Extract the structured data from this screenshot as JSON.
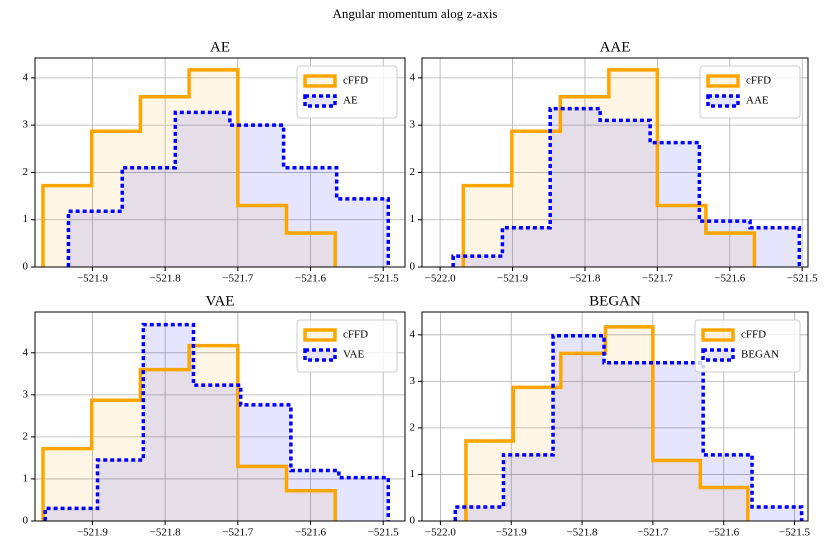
{
  "title": "Angular momentum alog z-axis",
  "chart_data": [
    {
      "type": "histogram",
      "title": "AE",
      "xlim": [
        -521.979,
        -521.47
      ],
      "ylim": [
        0,
        4.42
      ],
      "xticks": [
        {
          "value": -521.9,
          "label": "−521.9"
        },
        {
          "value": -521.8,
          "label": "−521.8"
        },
        {
          "value": -521.7,
          "label": "−521.7"
        },
        {
          "value": -521.6,
          "label": "−521.6"
        },
        {
          "value": -521.5,
          "label": "−521.5"
        }
      ],
      "yticks": [
        0,
        1,
        2,
        3,
        4
      ],
      "grid": true,
      "legend": "upper right",
      "series": [
        {
          "name": "cFFD",
          "color": "#ffa500",
          "linestyle": "solid",
          "bins": [
            -521.968,
            -521.901,
            -521.834,
            -521.767,
            -521.7,
            -521.633,
            -521.566
          ],
          "values": [
            1.72,
            2.87,
            3.6,
            4.17,
            1.3,
            0.72
          ]
        },
        {
          "name": "AE",
          "color": "#0000ff",
          "linestyle": "dotted",
          "bins": [
            -521.933,
            -521.859,
            -521.786,
            -521.711,
            -521.637,
            -521.564,
            -521.493
          ],
          "values": [
            1.18,
            2.1,
            3.27,
            3.0,
            2.1,
            1.44
          ]
        }
      ]
    },
    {
      "type": "histogram",
      "title": "AAE",
      "xlim": [
        -522.025,
        -521.492
      ],
      "ylim": [
        0,
        4.42
      ],
      "xticks": [
        {
          "value": -522.0,
          "label": "−522.0"
        },
        {
          "value": -521.9,
          "label": "−521.9"
        },
        {
          "value": -521.8,
          "label": "−521.8"
        },
        {
          "value": -521.7,
          "label": "−521.7"
        },
        {
          "value": -521.6,
          "label": "−521.6"
        },
        {
          "value": -521.5,
          "label": "−521.5"
        }
      ],
      "yticks": [
        0,
        1,
        2,
        3,
        4
      ],
      "grid": true,
      "legend": "upper right",
      "series": [
        {
          "name": "cFFD",
          "color": "#ffa500",
          "linestyle": "solid",
          "bins": [
            -521.968,
            -521.901,
            -521.834,
            -521.767,
            -521.7,
            -521.633,
            -521.566
          ],
          "values": [
            1.72,
            2.87,
            3.6,
            4.17,
            1.3,
            0.72
          ]
        },
        {
          "name": "AAE",
          "color": "#0000ff",
          "linestyle": "dotted",
          "bins": [
            -521.982,
            -521.914,
            -521.848,
            -521.779,
            -521.71,
            -521.642,
            -521.572,
            -521.504
          ],
          "values": [
            0.23,
            0.83,
            3.35,
            3.1,
            2.63,
            0.97,
            0.83
          ]
        }
      ]
    },
    {
      "type": "histogram",
      "title": "VAE",
      "xlim": [
        -521.979,
        -521.47
      ],
      "ylim": [
        0,
        4.97
      ],
      "xticks": [
        {
          "value": -521.9,
          "label": "−521.9"
        },
        {
          "value": -521.8,
          "label": "−521.8"
        },
        {
          "value": -521.7,
          "label": "−521.7"
        },
        {
          "value": -521.6,
          "label": "−521.6"
        },
        {
          "value": -521.5,
          "label": "−521.5"
        }
      ],
      "yticks": [
        0,
        1,
        2,
        3,
        4
      ],
      "grid": true,
      "legend": "upper right",
      "series": [
        {
          "name": "cFFD",
          "color": "#ffa500",
          "linestyle": "solid",
          "bins": [
            -521.968,
            -521.901,
            -521.834,
            -521.767,
            -521.7,
            -521.633,
            -521.566
          ],
          "values": [
            1.72,
            2.87,
            3.6,
            4.17,
            1.3,
            0.72
          ]
        },
        {
          "name": "VAE",
          "color": "#0000ff",
          "linestyle": "dotted",
          "bins": [
            -521.965,
            -521.893,
            -521.83,
            -521.761,
            -521.696,
            -521.627,
            -521.561,
            -521.493
          ],
          "values": [
            0.3,
            1.45,
            4.67,
            3.23,
            2.76,
            1.2,
            1.03
          ]
        }
      ]
    },
    {
      "type": "histogram",
      "title": "BEGAN",
      "xlim": [
        -522.026,
        -521.481
      ],
      "ylim": [
        0,
        4.49
      ],
      "xticks": [
        {
          "value": -522.0,
          "label": "−522.0"
        },
        {
          "value": -521.9,
          "label": "−521.9"
        },
        {
          "value": -521.8,
          "label": "−521.8"
        },
        {
          "value": -521.7,
          "label": "−521.7"
        },
        {
          "value": -521.6,
          "label": "−521.6"
        },
        {
          "value": -521.5,
          "label": "−521.5"
        }
      ],
      "yticks": [
        0,
        1,
        2,
        3,
        4
      ],
      "grid": true,
      "legend": "upper right",
      "series": [
        {
          "name": "cFFD",
          "color": "#ffa500",
          "linestyle": "solid",
          "bins": [
            -521.964,
            -521.897,
            -521.83,
            -521.767,
            -521.7,
            -521.633,
            -521.566
          ],
          "values": [
            1.72,
            2.87,
            3.6,
            4.17,
            1.3,
            0.72
          ]
        },
        {
          "name": "BEGAN",
          "color": "#0000ff",
          "linestyle": "dotted",
          "bins": [
            -521.979,
            -521.911,
            -521.841,
            -521.769,
            -521.7,
            -521.629,
            -521.56,
            -521.49
          ],
          "values": [
            0.3,
            1.42,
            3.98,
            3.4,
            3.4,
            1.42,
            0.3
          ]
        }
      ]
    }
  ]
}
